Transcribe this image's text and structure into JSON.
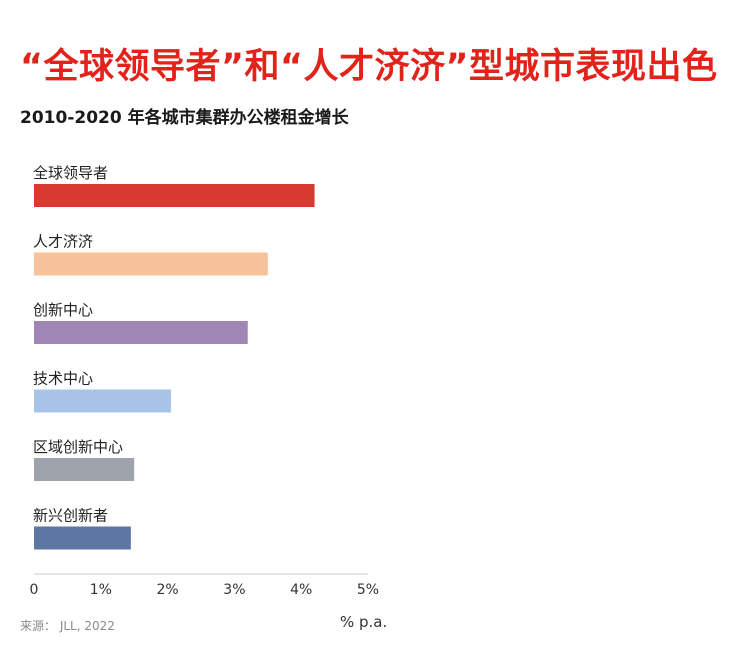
{
  "title": "“全球领导者”和“人才济济”型城市表现出色",
  "subtitle": "2010-2020 年各城市集群办公楼租金增长",
  "source": "来源：   JLL, 2022",
  "colors": {
    "title": "#e2231a",
    "bars": [
      "#d93a2f",
      "#f7c29a",
      "#a086b4",
      "#a7c4e8",
      "#9ea3ab",
      "#5e76a3"
    ]
  },
  "chart_data": {
    "type": "bar",
    "orientation": "horizontal",
    "categories": [
      "全球领导者",
      "人才济济",
      "创新中心",
      "技术中心",
      "区域创新中心",
      "新兴创新者"
    ],
    "values": [
      4.2,
      3.5,
      3.2,
      2.05,
      1.5,
      1.45
    ],
    "xlim": [
      0,
      5
    ],
    "xticks": [
      "0",
      "1%",
      "2%",
      "3%",
      "4%",
      "5%"
    ],
    "xlabel": "% p.a.",
    "ylabel": "",
    "grid": false,
    "legend": "none"
  }
}
